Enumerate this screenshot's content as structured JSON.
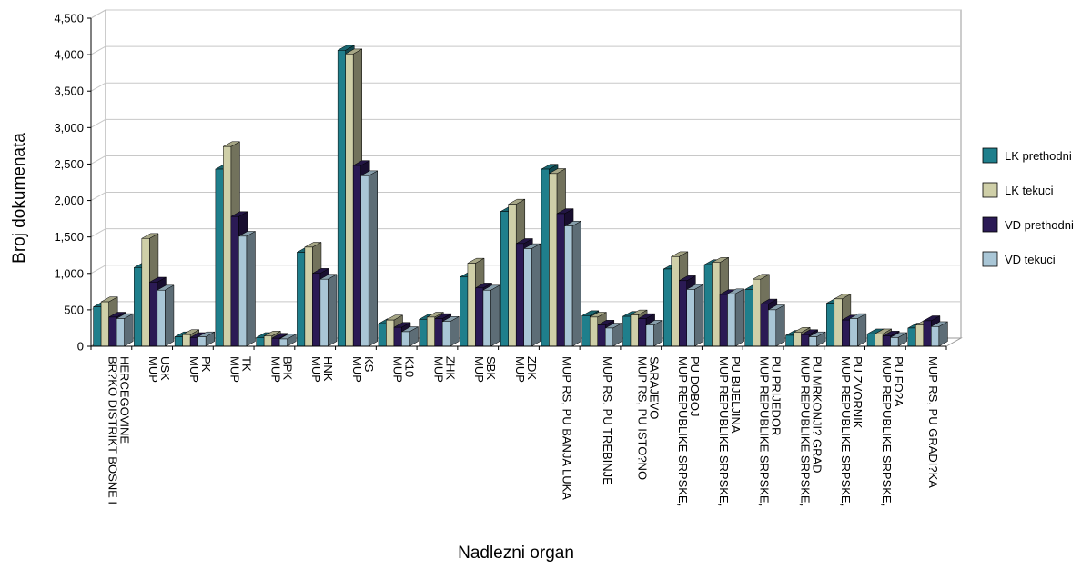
{
  "chart_data": {
    "type": "bar",
    "xlabel": "Nadlezni organ",
    "ylabel": "Broj dokumenata",
    "ylim": [
      0,
      4500
    ],
    "yticks": [
      0,
      500,
      1000,
      1500,
      2000,
      2500,
      3000,
      3500,
      4000,
      4500
    ],
    "ytick_labels": [
      "0",
      "500",
      "1,000",
      "1,500",
      "2,000",
      "2,500",
      "3,000",
      "3,500",
      "4,000",
      "4,500"
    ],
    "grid": true,
    "legend_position": "right",
    "categories": [
      "BR?KO DISTRIKT BOSNE I HERCEGOVINE",
      "MUP USK",
      "MUP PK",
      "MUP TK",
      "MUP BPK",
      "MUP HNK",
      "MUP KS",
      "MUP K10",
      "MUP ZHK",
      "MUP SBK",
      "MUP ZDK",
      "MUP RS, PU BANJA LUKA",
      "MUP RS, PU TREBINJE",
      "MUP RS, PU ISTO?NO SARAJEVO",
      "MUP REPUBLIKE SRPSKE, PU DOBOJ",
      "MUP REPUBLIKE SRPSKE, PU BIJELJINA",
      "MUP REPUBLIKE SRPSKE, PU PRIJEDOR",
      "MUP REPUBLIKE SRPSKE, PU MRKONJI? GRAD",
      "MUP REPUBLIKE SRPSKE, PU ZVORNIK",
      "MUP REPUBLIKE SRPSKE, PU FO?A",
      "MUP RS, PU GRADI?KA"
    ],
    "category_label_lines": [
      [
        "BR?KO DISTRIKT BOSNE I",
        "HERCEGOVINE"
      ],
      [
        "MUP",
        "USK"
      ],
      [
        "MUP",
        "PK"
      ],
      [
        "MUP",
        "TK"
      ],
      [
        "MUP",
        "BPK"
      ],
      [
        "MUP",
        "HNK"
      ],
      [
        "MUP",
        "KS"
      ],
      [
        "MUP",
        "K10"
      ],
      [
        "MUP",
        "ZHK"
      ],
      [
        "MUP",
        "SBK"
      ],
      [
        "MUP",
        "ZDK"
      ],
      [
        "MUP RS, PU BANJA LUKA"
      ],
      [
        "MUP RS, PU TREBINJE"
      ],
      [
        "MUP RS, PU ISTO?NO",
        "SARAJEVO"
      ],
      [
        "MUP REPUBLIKE SRPSKE,",
        "PU DOBOJ"
      ],
      [
        "MUP REPUBLIKE SRPSKE,",
        "PU BIJELJINA"
      ],
      [
        "MUP REPUBLIKE SRPSKE,",
        "PU PRIJEDOR"
      ],
      [
        "MUP REPUBLIKE SRPSKE,",
        "PU MRKONJI? GRAD"
      ],
      [
        "MUP REPUBLIKE SRPSKE,",
        "PU ZVORNIK"
      ],
      [
        "MUP REPUBLIKE SRPSKE,",
        "PU FO?A"
      ],
      [
        "MUP RS, PU GRADI?KA"
      ]
    ],
    "series": [
      {
        "name": "LK prethodni",
        "color": "#1f7f8c",
        "values": [
          540,
          1080,
          130,
          2430,
          120,
          1290,
          4060,
          310,
          370,
          950,
          1850,
          2430,
          420,
          410,
          1060,
          1120,
          780,
          150,
          590,
          170,
          250
        ]
      },
      {
        "name": "LK tekuci",
        "color": "#cfcfa8",
        "values": [
          610,
          1480,
          160,
          2740,
          140,
          1360,
          4010,
          360,
          400,
          1140,
          1950,
          2370,
          400,
          430,
          1230,
          1150,
          920,
          190,
          650,
          170,
          290
        ]
      },
      {
        "name": "VD prethodni",
        "color": "#2b1a55",
        "values": [
          400,
          880,
          120,
          1780,
          110,
          1000,
          2480,
          260,
          380,
          800,
          1410,
          1820,
          290,
          380,
          900,
          710,
          580,
          160,
          360,
          140,
          350
        ]
      },
      {
        "name": "VD tekuci",
        "color": "#a9c6d6",
        "values": [
          380,
          770,
          130,
          1510,
          100,
          920,
          2340,
          200,
          340,
          770,
          1340,
          1650,
          250,
          290,
          780,
          720,
          500,
          130,
          380,
          120,
          270
        ]
      }
    ]
  }
}
